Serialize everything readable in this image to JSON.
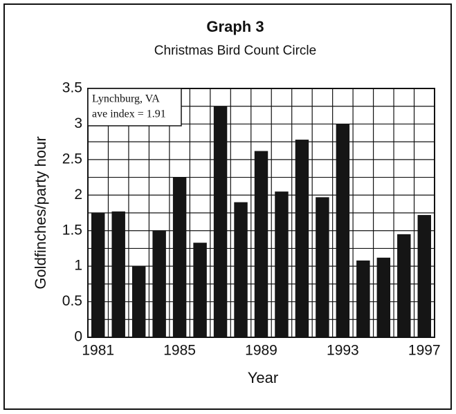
{
  "chart_data": {
    "type": "bar",
    "title": "Graph 3",
    "subtitle": "Christmas Bird Count Circle",
    "xlabel": "Year",
    "ylabel": "Goldfinches/party hour",
    "annotations": [
      "Lynchburg, VA",
      "ave index = 1.91"
    ],
    "categories": [
      "1981",
      null,
      null,
      null,
      "1985",
      null,
      null,
      null,
      "1989",
      null,
      null,
      null,
      "1993",
      null,
      null,
      null,
      "1997"
    ],
    "values": [
      1.75,
      1.77,
      1.0,
      1.5,
      2.25,
      1.33,
      3.25,
      1.9,
      2.62,
      2.05,
      2.78,
      1.97,
      3.0,
      1.08,
      1.12,
      1.45,
      1.72
    ],
    "color": "#151515",
    "ylim": [
      0,
      3.5
    ],
    "yticks": [
      0,
      0.5,
      1,
      1.5,
      2,
      2.5,
      3,
      3.5
    ],
    "grid": true
  }
}
